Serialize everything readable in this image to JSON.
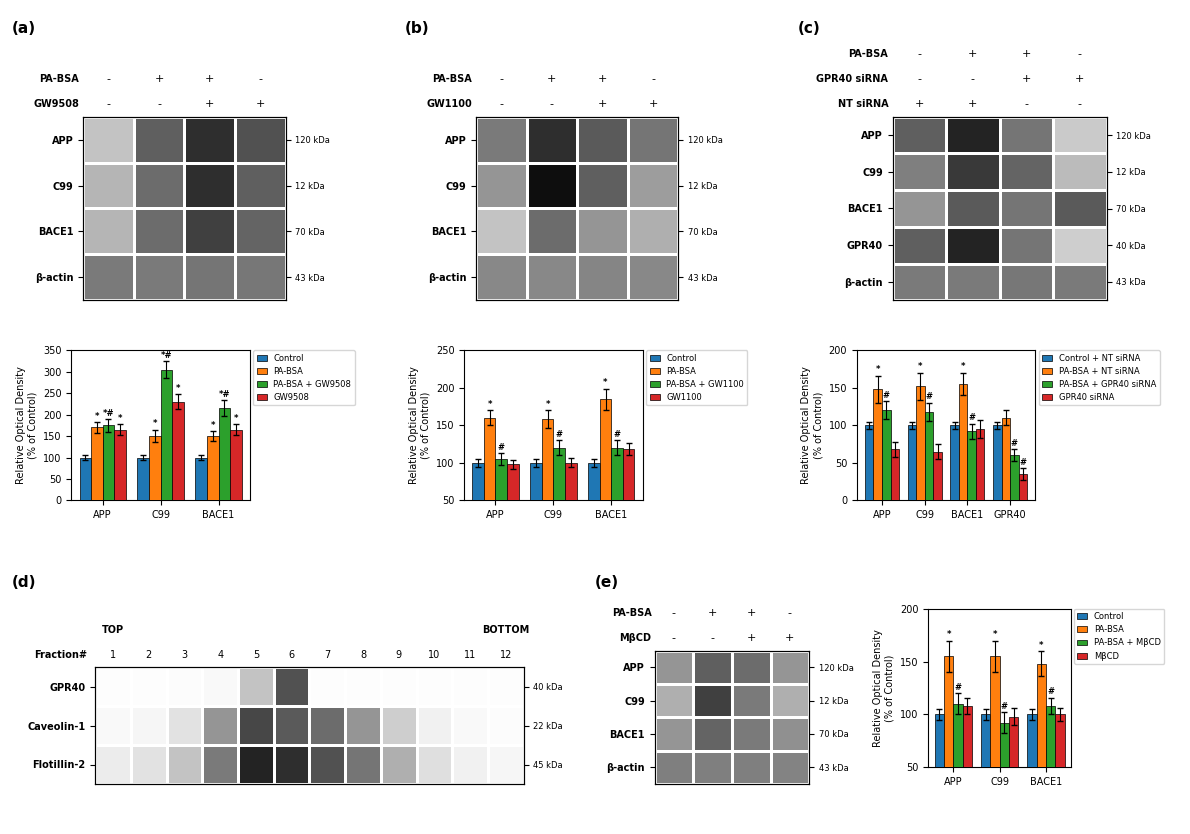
{
  "chart_data": [
    {
      "type": "heatmap",
      "title": "(a)",
      "treatments": [
        {
          "name": "PA-BSA",
          "values": [
            "-",
            "+",
            "+",
            "-"
          ]
        },
        {
          "name": "GW9508",
          "values": [
            "-",
            "-",
            "+",
            "+"
          ]
        }
      ],
      "rows": [
        "APP",
        "C99",
        "BACE1",
        "β-actin"
      ],
      "rows_right": [
        "120 kDa",
        "12 kDa",
        "70 kDa",
        "43 kDa"
      ],
      "cells": [
        [
          0.35,
          0.7,
          0.85,
          0.75
        ],
        [
          0.4,
          0.65,
          0.85,
          0.7
        ],
        [
          0.4,
          0.65,
          0.8,
          0.68
        ],
        [
          0.6,
          0.6,
          0.62,
          0.61
        ]
      ],
      "zlim": [
        0,
        1
      ]
    },
    {
      "type": "bar",
      "categories": [
        "APP",
        "C99",
        "BACE1"
      ],
      "ylabel": "Relative Optical Density\n(% of Control)",
      "ylim": [
        0,
        350
      ],
      "yticks": [
        0,
        50,
        100,
        150,
        200,
        250,
        300,
        350
      ],
      "legend": "right",
      "series": [
        {
          "name": "Control",
          "values": [
            100,
            100,
            100
          ],
          "errors": [
            5,
            5,
            5
          ],
          "annotations": [
            null,
            null,
            null
          ]
        },
        {
          "name": "PA-BSA",
          "values": [
            170,
            150,
            150
          ],
          "errors": [
            12,
            15,
            12
          ],
          "annotations": [
            "*",
            "*",
            "*"
          ]
        },
        {
          "name": "PA-BSA + GW9508",
          "values": [
            175,
            305,
            215
          ],
          "errors": [
            15,
            20,
            18
          ],
          "annotations": [
            "*#",
            "*#",
            "*#"
          ]
        },
        {
          "name": "GW9508",
          "values": [
            165,
            230,
            165
          ],
          "errors": [
            12,
            18,
            12
          ],
          "annotations": [
            "*",
            "*",
            "*"
          ]
        }
      ]
    },
    {
      "type": "heatmap",
      "title": "(b)",
      "treatments": [
        {
          "name": "PA-BSA",
          "values": [
            "-",
            "+",
            "+",
            "-"
          ]
        },
        {
          "name": "GW1100",
          "values": [
            "-",
            "-",
            "+",
            "+"
          ]
        }
      ],
      "rows": [
        "APP",
        "C99",
        "BACE1",
        "β-actin"
      ],
      "rows_right": [
        "120 kDa",
        "12 kDa",
        "70 kDa",
        "43 kDa"
      ],
      "cells": [
        [
          0.6,
          0.85,
          0.72,
          0.62
        ],
        [
          0.5,
          0.95,
          0.7,
          0.48
        ],
        [
          0.35,
          0.65,
          0.5,
          0.42
        ],
        [
          0.55,
          0.55,
          0.56,
          0.55
        ]
      ],
      "zlim": [
        0,
        1
      ]
    },
    {
      "type": "bar",
      "categories": [
        "APP",
        "C99",
        "BACE1"
      ],
      "ylabel": "Relative Optical Density\n(% of Control)",
      "ylim": [
        50,
        250
      ],
      "yticks": [
        50,
        100,
        150,
        200,
        250
      ],
      "legend": "right",
      "series": [
        {
          "name": "Control",
          "values": [
            100,
            100,
            100
          ],
          "errors": [
            5,
            5,
            5
          ],
          "annotations": [
            null,
            null,
            null
          ]
        },
        {
          "name": "PA-BSA",
          "values": [
            160,
            158,
            185
          ],
          "errors": [
            10,
            12,
            14
          ],
          "annotations": [
            "*",
            "*",
            "*"
          ]
        },
        {
          "name": "PA-BSA + GW1100",
          "values": [
            105,
            120,
            120
          ],
          "errors": [
            8,
            10,
            10
          ],
          "annotations": [
            "#",
            "#",
            "#"
          ]
        },
        {
          "name": "GW1100",
          "values": [
            98,
            100,
            118
          ],
          "errors": [
            6,
            6,
            8
          ],
          "annotations": [
            null,
            null,
            null
          ]
        }
      ]
    },
    {
      "type": "heatmap",
      "title": "(c)",
      "treatments": [
        {
          "name": "PA-BSA",
          "values": [
            "-",
            "+",
            "+",
            "-"
          ]
        },
        {
          "name": "GPR40 siRNA",
          "values": [
            "-",
            "-",
            "+",
            "+"
          ]
        },
        {
          "name": "NT siRNA",
          "values": [
            "+",
            "+",
            "-",
            "-"
          ]
        }
      ],
      "rows": [
        "APP",
        "C99",
        "BACE1",
        "GPR40",
        "β-actin"
      ],
      "rows_right": [
        "120 kDa",
        "12 kDa",
        "70 kDa",
        "40 kDa",
        "43 kDa"
      ],
      "cells": [
        [
          0.7,
          0.88,
          0.62,
          0.32
        ],
        [
          0.58,
          0.82,
          0.68,
          0.38
        ],
        [
          0.5,
          0.72,
          0.62,
          0.72
        ],
        [
          0.7,
          0.88,
          0.62,
          0.3
        ],
        [
          0.6,
          0.6,
          0.61,
          0.6
        ]
      ],
      "zlim": [
        0,
        1
      ]
    },
    {
      "type": "bar",
      "categories": [
        "APP",
        "C99",
        "BACE1",
        "GPR40"
      ],
      "ylabel": "Relative Optical Density\n(% of Control)",
      "ylim": [
        0,
        200
      ],
      "yticks": [
        0,
        50,
        100,
        150,
        200
      ],
      "legend": "right",
      "series": [
        {
          "name": "Control + NT siRNA",
          "values": [
            100,
            100,
            100,
            100
          ],
          "errors": [
            5,
            5,
            5,
            5
          ],
          "annotations": [
            null,
            null,
            null,
            null
          ]
        },
        {
          "name": "PA-BSA + NT siRNA",
          "values": [
            148,
            152,
            155,
            110
          ],
          "errors": [
            18,
            18,
            15,
            10
          ],
          "annotations": [
            "*",
            "*",
            "*",
            null
          ]
        },
        {
          "name": "PA-BSA + GPR40 siRNA",
          "values": [
            120,
            118,
            92,
            60
          ],
          "errors": [
            12,
            12,
            10,
            8
          ],
          "annotations": [
            "#",
            "#",
            "#",
            "#"
          ]
        },
        {
          "name": "GPR40 siRNA",
          "values": [
            68,
            65,
            95,
            35
          ],
          "errors": [
            10,
            10,
            12,
            8
          ],
          "annotations": [
            null,
            null,
            null,
            "#"
          ]
        }
      ]
    },
    {
      "type": "heatmap",
      "title": "(d)",
      "xlabel": "Fraction#",
      "categories": [
        "1",
        "2",
        "3",
        "4",
        "5",
        "6",
        "7",
        "8",
        "9",
        "10",
        "11",
        "12"
      ],
      "annotations": [
        {
          "text": "TOP",
          "x": "1"
        },
        {
          "text": "BOTTOM",
          "x": "12"
        }
      ],
      "rows": [
        "GPR40",
        "Caveolin-1",
        "Flotillin-2"
      ],
      "rows_right": [
        "40 kDa",
        "22 kDa",
        "45 kDa"
      ],
      "cells": [
        [
          0.02,
          0.02,
          0.03,
          0.05,
          0.35,
          0.75,
          0.02,
          0.02,
          0.02,
          0.02,
          0.02,
          0.02
        ],
        [
          0.05,
          0.08,
          0.2,
          0.5,
          0.78,
          0.72,
          0.65,
          0.5,
          0.3,
          0.12,
          0.05,
          0.03
        ],
        [
          0.15,
          0.2,
          0.35,
          0.6,
          0.88,
          0.85,
          0.75,
          0.62,
          0.42,
          0.22,
          0.12,
          0.08
        ]
      ],
      "zlim": [
        0,
        1
      ]
    },
    {
      "type": "heatmap",
      "title": "(e)",
      "treatments": [
        {
          "name": "PA-BSA",
          "values": [
            "-",
            "+",
            "+",
            "-"
          ]
        },
        {
          "name": "MβCD",
          "values": [
            "-",
            "-",
            "+",
            "+"
          ]
        }
      ],
      "rows": [
        "APP",
        "C99",
        "BACE1",
        "β-actin"
      ],
      "rows_right": [
        "120 kDa",
        "12 kDa",
        "70 kDa",
        "43 kDa"
      ],
      "cells": [
        [
          0.5,
          0.7,
          0.65,
          0.5
        ],
        [
          0.42,
          0.8,
          0.6,
          0.42
        ],
        [
          0.5,
          0.68,
          0.6,
          0.52
        ],
        [
          0.58,
          0.58,
          0.58,
          0.57
        ]
      ],
      "zlim": [
        0,
        1
      ]
    },
    {
      "type": "bar",
      "categories": [
        "APP",
        "C99",
        "BACE1"
      ],
      "ylabel": "Relative Optical Density\n(% of Control)",
      "ylim": [
        50,
        200
      ],
      "yticks": [
        50,
        100,
        150,
        200
      ],
      "legend": "right",
      "series": [
        {
          "name": "Control",
          "values": [
            100,
            100,
            100
          ],
          "errors": [
            5,
            5,
            5
          ],
          "annotations": [
            null,
            null,
            null
          ]
        },
        {
          "name": "PA-BSA",
          "values": [
            155,
            155,
            148
          ],
          "errors": [
            15,
            15,
            12
          ],
          "annotations": [
            "*",
            "*",
            "*"
          ]
        },
        {
          "name": "PA-BSA + MβCD",
          "values": [
            110,
            92,
            108
          ],
          "errors": [
            10,
            10,
            8
          ],
          "annotations": [
            "#",
            "#",
            "#"
          ]
        },
        {
          "name": "MβCD",
          "values": [
            108,
            98,
            100
          ],
          "errors": [
            8,
            8,
            6
          ],
          "annotations": [
            null,
            null,
            null
          ]
        }
      ]
    }
  ]
}
